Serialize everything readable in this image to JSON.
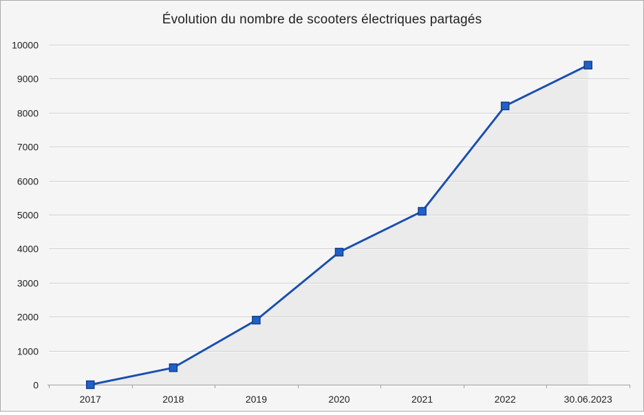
{
  "chart_data": {
    "type": "line",
    "title": "Évolution du nombre de scooters électriques partagés",
    "categories": [
      "2017",
      "2018",
      "2019",
      "2020",
      "2021",
      "2022",
      "30.06.2023"
    ],
    "values": [
      0,
      500,
      1900,
      3900,
      5100,
      8200,
      9400
    ],
    "xlabel": "",
    "ylabel": "",
    "ylim": [
      0,
      10000
    ],
    "ytick_step": 1000,
    "grid": true,
    "legend_position": "none",
    "marker": "square",
    "colors": {
      "background": "#f5f5f5",
      "frame_border": "#a9a9a9",
      "area_fill": "#ebebeb",
      "gridline": "#cfcfcf",
      "gridline_highlight": "#ffffff",
      "axis": "#9b9b9b",
      "line": "#1a4fae",
      "marker_fill": "#2061c9",
      "marker_border": "#123e87",
      "text": "#1f1f1f"
    }
  }
}
